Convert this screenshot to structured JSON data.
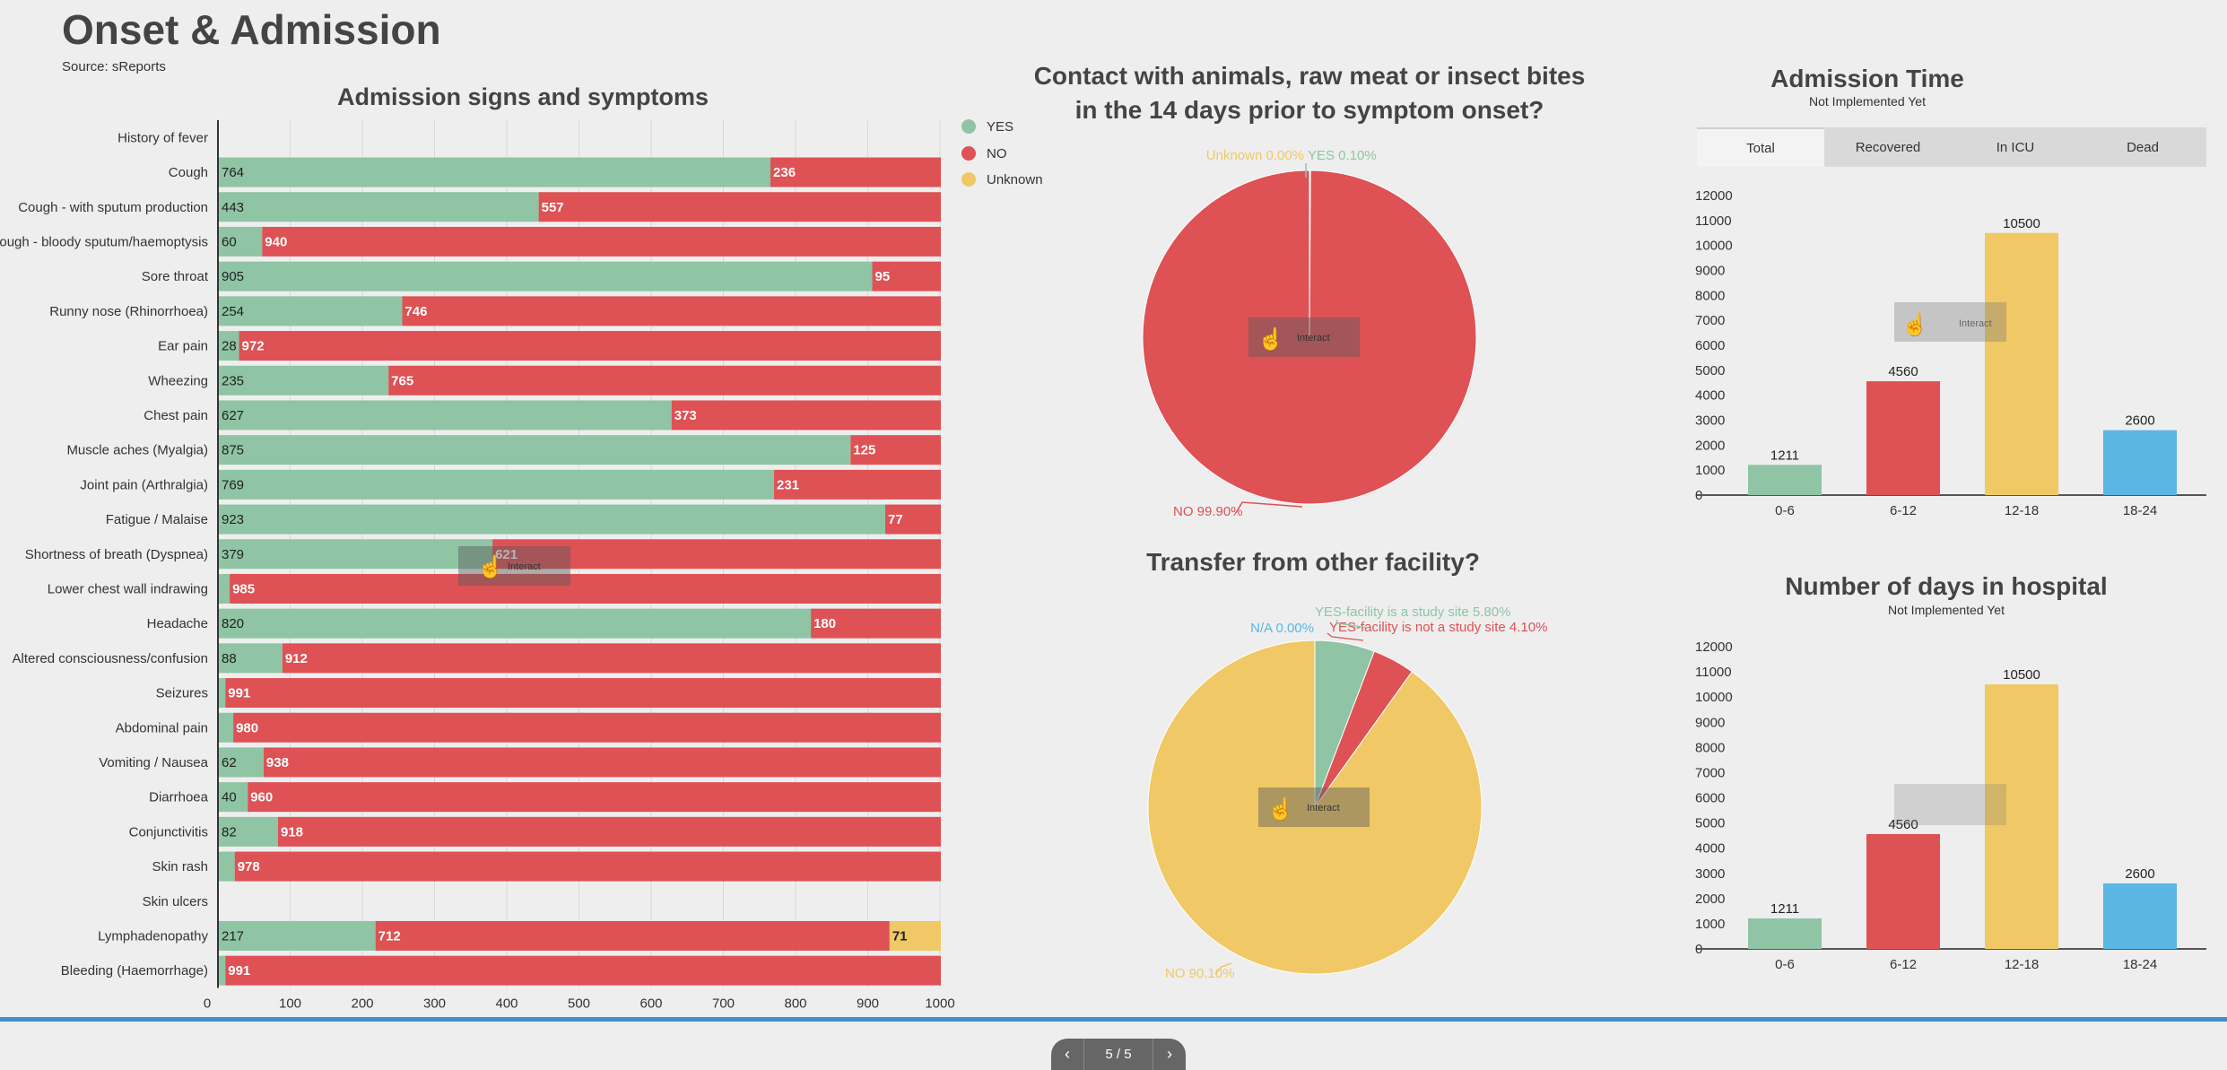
{
  "header": {
    "title": "Onset & Admission",
    "source": "Source: sReports"
  },
  "colors": {
    "yes": "#8fc4a4",
    "no": "#de5154",
    "unknown": "#f0c865",
    "blue": "#5bb6e4",
    "text": "#333333"
  },
  "legend": {
    "yes": "YES",
    "no": "NO",
    "unknown": "Unknown"
  },
  "interact_label": "Interact",
  "symptoms_chart": {
    "type": "bar",
    "orientation": "horizontal",
    "stacked": true,
    "title": "Admission signs and symptoms",
    "categories": [
      "History of fever",
      "Cough",
      "Cough - with sputum production",
      "Cough - bloody sputum/haemoptysis",
      "Sore throat",
      "Runny nose (Rhinorrhoea)",
      "Ear pain",
      "Wheezing",
      "Chest pain",
      "Muscle aches (Myalgia)",
      "Joint pain (Arthralgia)",
      "Fatigue / Malaise",
      "Shortness of breath (Dyspnea)",
      "Lower chest wall indrawing",
      "Headache",
      "Altered consciousness/confusion",
      "Seizures",
      "Abdominal pain",
      "Vomiting / Nausea",
      "Diarrhoea",
      "Conjunctivitis",
      "Skin rash",
      "Skin ulcers",
      "Lymphadenopathy",
      "Bleeding (Haemorrhage)"
    ],
    "series": [
      {
        "name": "YES",
        "values": [
          0,
          764,
          443,
          60,
          905,
          254,
          28,
          235,
          627,
          875,
          769,
          923,
          379,
          15,
          820,
          88,
          9,
          20,
          62,
          40,
          82,
          22,
          0,
          217,
          9
        ]
      },
      {
        "name": "NO",
        "values": [
          0,
          236,
          557,
          940,
          95,
          746,
          972,
          765,
          373,
          125,
          231,
          77,
          621,
          985,
          180,
          912,
          991,
          980,
          938,
          960,
          918,
          978,
          0,
          712,
          991
        ]
      },
      {
        "name": "Unknown",
        "values": [
          0,
          0,
          0,
          0,
          0,
          0,
          0,
          0,
          0,
          0,
          0,
          0,
          0,
          0,
          0,
          0,
          0,
          0,
          0,
          0,
          0,
          0,
          0,
          71,
          0
        ]
      }
    ],
    "x_ticks": [
      "0",
      "100",
      "200",
      "300",
      "400",
      "500",
      "600",
      "700",
      "800",
      "900",
      "1000"
    ],
    "xlim": [
      0,
      1000
    ],
    "legend_position": "top-right"
  },
  "contact_chart": {
    "type": "pie",
    "title_lines": [
      "Contact with animals, raw meat or insect bites",
      "in the 14 days prior to symptom onset?"
    ],
    "slices": [
      {
        "name": "YES",
        "value": 0.1,
        "label": "YES 0.10%"
      },
      {
        "name": "NO",
        "value": 99.9,
        "label": "NO 99.90%"
      },
      {
        "name": "Unknown",
        "value": 0.0,
        "label": "Unknown 0.00%"
      }
    ]
  },
  "transfer_chart": {
    "type": "pie",
    "title": "Transfer from other facility?",
    "slices": [
      {
        "name": "YES-facility is a study site",
        "value": 5.8,
        "label": "YES-facility is a study site 5.80%"
      },
      {
        "name": "YES-facility is not a study site",
        "value": 4.1,
        "label": "YES-facility is not a study site 4.10%"
      },
      {
        "name": "NO",
        "value": 90.1,
        "label": "NO 90.10%"
      },
      {
        "name": "N/A",
        "value": 0.0,
        "label": "N/A 0.00%"
      }
    ]
  },
  "admission_time_chart": {
    "type": "bar",
    "title": "Admission Time",
    "subtitle": "Not Implemented Yet",
    "tabs": [
      "Total",
      "Recovered",
      "In ICU",
      "Dead"
    ],
    "active_tab": "Total",
    "categories": [
      "0-6",
      "6-12",
      "12-18",
      "18-24"
    ],
    "values": [
      1211,
      4560,
      10500,
      2600
    ],
    "value_labels": [
      "1211",
      "4560",
      "10500",
      "2600"
    ],
    "y_ticks": [
      "0",
      "1000",
      "2000",
      "3000",
      "4000",
      "5000",
      "6000",
      "7000",
      "8000",
      "9000",
      "10000",
      "11000",
      "12000"
    ],
    "ylim": [
      0,
      12000
    ]
  },
  "days_chart": {
    "type": "bar",
    "title": "Number of days in hospital",
    "subtitle": "Not Implemented Yet",
    "categories": [
      "0-6",
      "6-12",
      "12-18",
      "18-24"
    ],
    "values": [
      1211,
      4560,
      10500,
      2600
    ],
    "value_labels": [
      "1211",
      "4560",
      "10500",
      "2600"
    ],
    "y_ticks": [
      "0",
      "1000",
      "2000",
      "3000",
      "4000",
      "5000",
      "6000",
      "7000",
      "8000",
      "9000",
      "10000",
      "11000",
      "12000"
    ],
    "ylim": [
      0,
      12000
    ]
  },
  "pager": {
    "label": "5 / 5"
  }
}
